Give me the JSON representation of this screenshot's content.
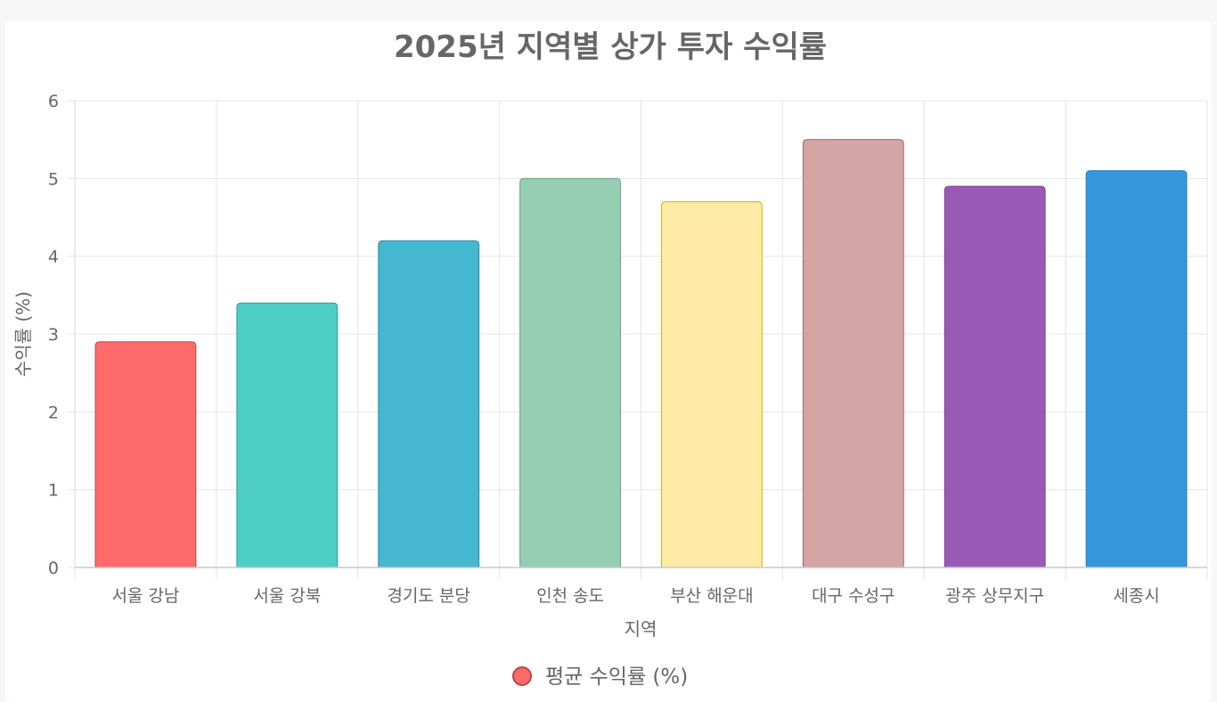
{
  "chart_data": {
    "type": "bar",
    "title": "2025년 지역별 상가 투자 수익률",
    "xlabel": "지역",
    "ylabel": "수익률 (%)",
    "ylim": [
      0,
      6
    ],
    "yticks": [
      0,
      1,
      2,
      3,
      4,
      5,
      6
    ],
    "grid": true,
    "legend_position": "bottom",
    "categories": [
      "서울 강남",
      "서울 강북",
      "경기도 분당",
      "인천 송도",
      "부산 해운대",
      "대구 수성구",
      "광주 상무지구",
      "세종시"
    ],
    "series": [
      {
        "name": "평균 수익률 (%)",
        "values": [
          2.9,
          3.4,
          4.2,
          5.0,
          4.7,
          5.5,
          4.9,
          5.1
        ],
        "colors": [
          "#ff6b6b",
          "#4ecdc4",
          "#45b7d1",
          "#96ceb4",
          "#ffeaa7",
          "#d4a5a5",
          "#9b59b6",
          "#3498db"
        ],
        "border_colors": [
          "#b04848",
          "#2f9a92",
          "#2b8aa3",
          "#6aa386",
          "#d4b106",
          "#9a6868",
          "#7d3c98",
          "#217dbb"
        ]
      }
    ]
  }
}
